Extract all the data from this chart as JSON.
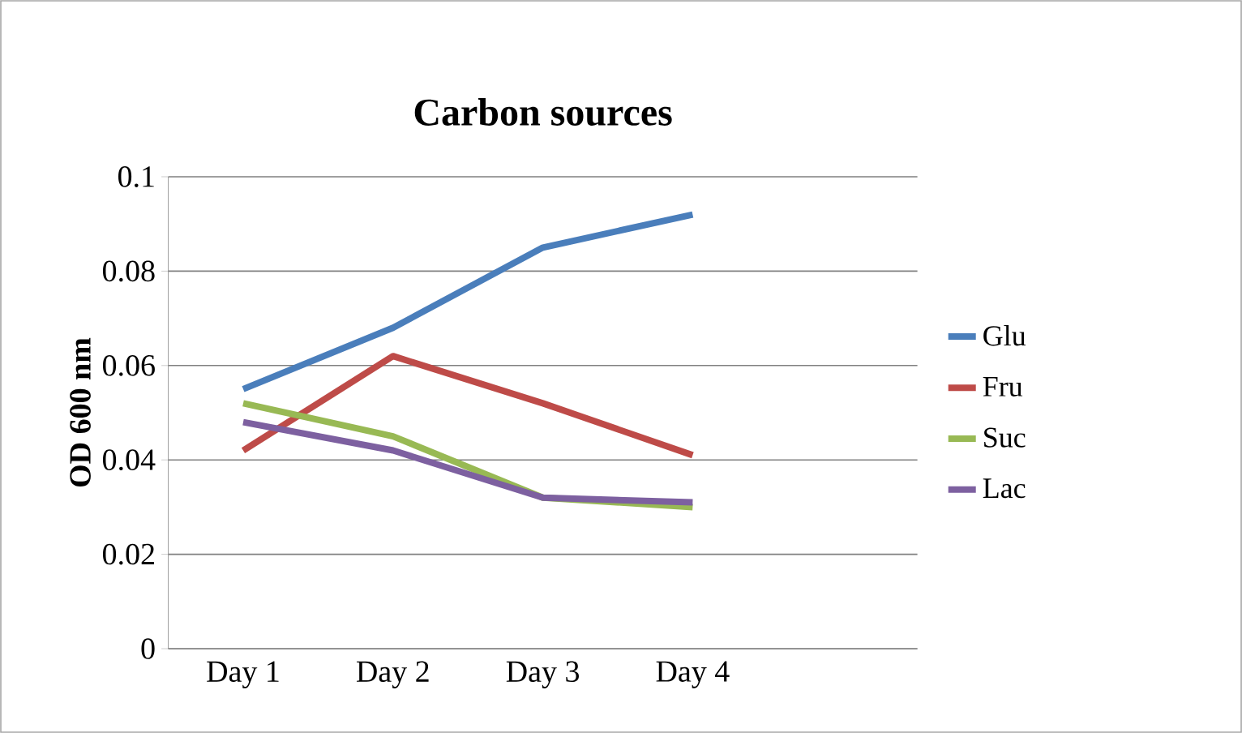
{
  "chart_data": {
    "type": "line",
    "title": "Carbon sources",
    "ylabel": "OD 600 nm",
    "categories": [
      "Day 1",
      "Day 2",
      "Day 3",
      "Day 4",
      null
    ],
    "series": [
      {
        "name": "Glu",
        "color": "#4a7ebb",
        "values": [
          0.055,
          0.068,
          0.085,
          0.092,
          null
        ]
      },
      {
        "name": "Fru",
        "color": "#be4b48",
        "values": [
          0.042,
          0.062,
          0.052,
          0.041,
          null
        ]
      },
      {
        "name": "Suc",
        "color": "#98b954",
        "values": [
          0.052,
          0.045,
          0.032,
          0.03,
          null
        ]
      },
      {
        "name": "Lac",
        "color": "#7d60a0",
        "values": [
          0.048,
          0.042,
          0.032,
          0.031,
          null
        ]
      }
    ],
    "ylim": [
      0,
      0.1
    ],
    "yticks": [
      0,
      0.02,
      0.04,
      0.06,
      0.08,
      0.1
    ],
    "grid": "y",
    "legend": "right",
    "marker": "none",
    "line_style": "solid"
  }
}
